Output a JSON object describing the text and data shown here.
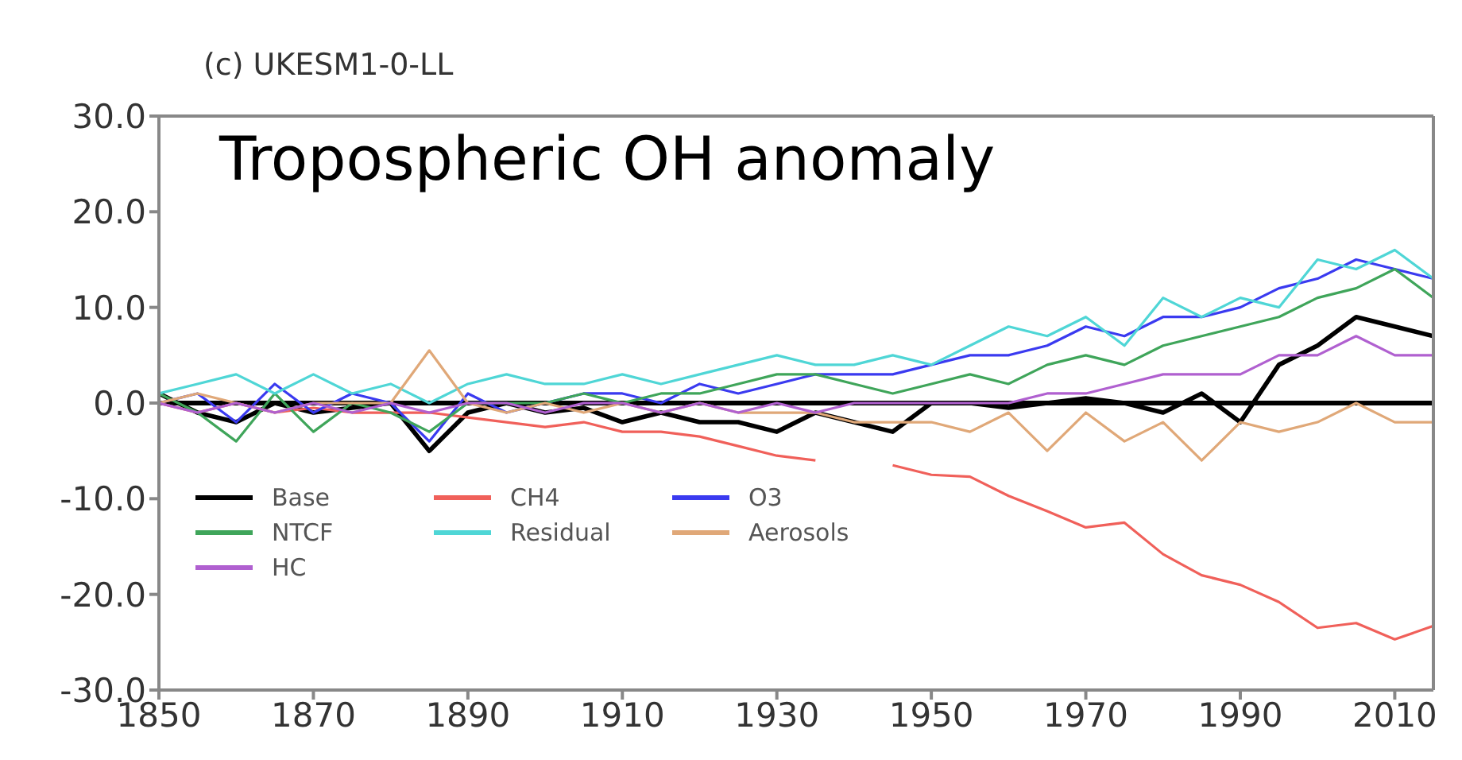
{
  "chart_data": {
    "type": "line",
    "title": "(c) UKESM1-0-LL",
    "annotations": [
      "Tropospheric OH anomaly"
    ],
    "x": [
      1850,
      1855,
      1860,
      1865,
      1870,
      1875,
      1880,
      1885,
      1890,
      1895,
      1900,
      1905,
      1910,
      1915,
      1920,
      1925,
      1930,
      1935,
      1940,
      1945,
      1950,
      1955,
      1960,
      1965,
      1970,
      1975,
      1980,
      1985,
      1990,
      1995,
      2000,
      2005,
      2010,
      2015
    ],
    "series": [
      {
        "name": "Base",
        "color": "#000000",
        "values": [
          1,
          -1,
          -2,
          0,
          -1,
          -0.5,
          0,
          -5,
          -1,
          0,
          -1,
          -0.5,
          -2,
          -1,
          -2,
          -2,
          -3,
          -1,
          -2,
          -3,
          0,
          0,
          -0.5,
          0,
          0.5,
          0,
          -1,
          1,
          -2,
          4,
          6,
          9,
          8,
          7
        ]
      },
      {
        "name": "CH4",
        "color": "#f0605a",
        "values": [
          0,
          -1,
          0,
          -1,
          -0.5,
          -1,
          -1,
          -1,
          -1.5,
          -2,
          -2.5,
          -2,
          -3,
          -3,
          -3.5,
          -4.5,
          -5.5,
          -6,
          null,
          -6.5,
          -7.5,
          -7.7,
          -9.7,
          -11.3,
          -13,
          -12.5,
          -15.8,
          -18,
          -19,
          -20.8,
          -23.5,
          -23,
          -24.7,
          -23.3
        ]
      },
      {
        "name": "O3",
        "color": "#3a3af0",
        "values": [
          0,
          1,
          -2,
          2,
          -1,
          1,
          0,
          -4,
          1,
          -1,
          0,
          1,
          1,
          0,
          2,
          1,
          2,
          3,
          3,
          3,
          4,
          5,
          5,
          6,
          8,
          7,
          9,
          9,
          10,
          12,
          13,
          15,
          14,
          13
        ]
      },
      {
        "name": "NTCF",
        "color": "#3fa55a",
        "values": [
          1,
          -1,
          -4,
          1,
          -3,
          0,
          -1,
          -3,
          0,
          0,
          0,
          1,
          0,
          1,
          1,
          2,
          3,
          3,
          2,
          1,
          2,
          3,
          2,
          4,
          5,
          4,
          6,
          7,
          8,
          9,
          11,
          12,
          14,
          11
        ]
      },
      {
        "name": "Residual",
        "color": "#4fd6d6",
        "values": [
          1,
          2,
          3,
          1,
          3,
          1,
          2,
          0,
          2,
          3,
          2,
          2,
          3,
          2,
          3,
          4,
          5,
          4,
          4,
          5,
          4,
          6,
          8,
          7,
          9,
          6,
          11,
          9,
          11,
          10,
          15,
          14,
          16,
          13
        ]
      },
      {
        "name": "Aerosols",
        "color": "#e0a878",
        "values": [
          0,
          1,
          0,
          -1,
          0,
          0,
          0,
          5.5,
          0,
          -1,
          0,
          -1,
          0,
          -1,
          0,
          -1,
          -1,
          -1,
          -2,
          -2,
          -2,
          -3,
          -1,
          -5,
          -1,
          -4,
          -2,
          -6,
          -2,
          -3,
          -2,
          0,
          -2,
          -2
        ]
      },
      {
        "name": "HC",
        "color": "#b060d0",
        "values": [
          0,
          -1,
          0,
          -1,
          0,
          -1,
          0,
          -1,
          0,
          0,
          -1,
          0,
          0,
          -1,
          0,
          -1,
          0,
          -1,
          0,
          0,
          0,
          0,
          0,
          1,
          1,
          2,
          3,
          3,
          3,
          5,
          5,
          7,
          5,
          5
        ]
      }
    ],
    "ref_lines": [
      {
        "axis": "y",
        "value": 0,
        "color": "#000000"
      }
    ],
    "xlim": [
      1850,
      2015
    ],
    "xticks": [
      1850,
      1870,
      1890,
      1910,
      1930,
      1950,
      1970,
      1990,
      2010
    ],
    "ylim": [
      -30,
      30
    ],
    "yticks": [
      {
        "value": -30,
        "label": "-30.0"
      },
      {
        "value": -20,
        "label": "-20.0"
      },
      {
        "value": -10,
        "label": "-10.0"
      },
      {
        "value": 0,
        "label": "0.0"
      },
      {
        "value": 10,
        "label": "10.0"
      },
      {
        "value": 20,
        "label": "20.0"
      },
      {
        "value": 30,
        "label": "30.0"
      }
    ],
    "legend": "bottom left",
    "grid": false,
    "marker": "none",
    "line_style": "solid"
  }
}
